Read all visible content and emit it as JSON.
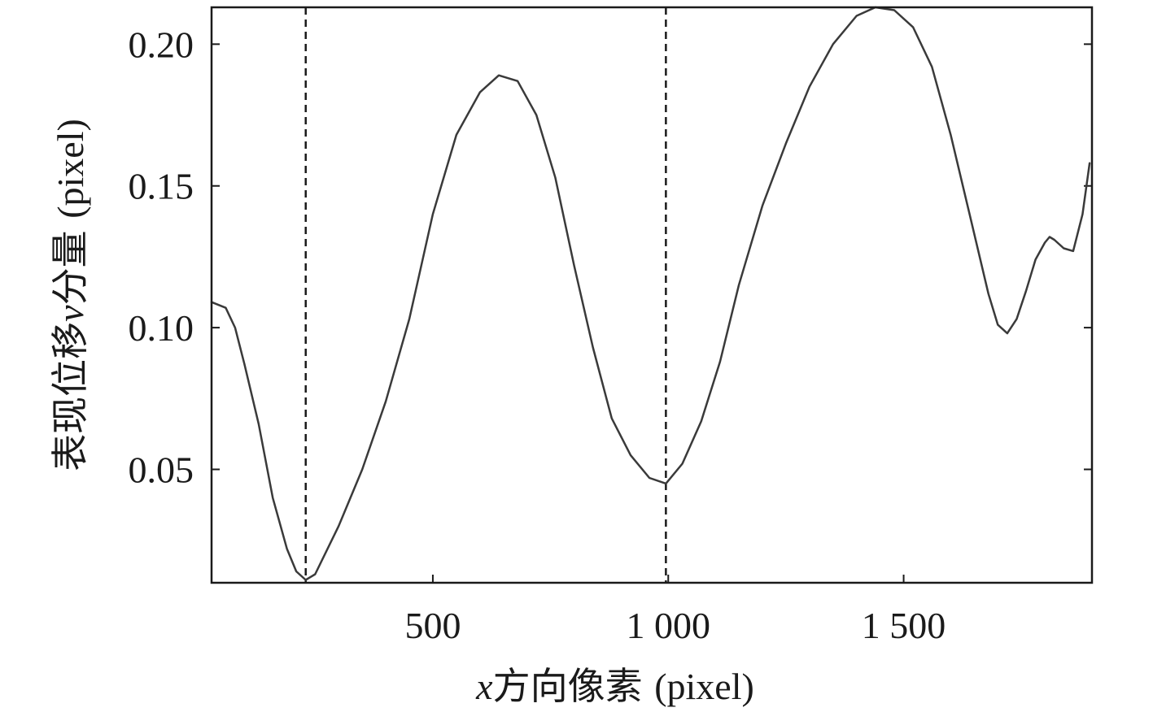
{
  "chart_data": {
    "type": "line",
    "xlabel_var": "x",
    "xlabel_text": "方向像素",
    "xlabel_unit": "(pixel)",
    "ylabel_text": "表现位移",
    "ylabel_var": "v",
    "ylabel_text2": "分量",
    "ylabel_unit": "(pixel)",
    "xlim": [
      30,
      1900
    ],
    "ylim": [
      0.01,
      0.213
    ],
    "xticks": [
      {
        "value": 500,
        "label": "500"
      },
      {
        "value": 1000,
        "label": "1 000"
      },
      {
        "value": 1500,
        "label": "1 500"
      }
    ],
    "yticks": [
      {
        "value": 0.05,
        "label": "0.05"
      },
      {
        "value": 0.1,
        "label": "0.10"
      },
      {
        "value": 0.15,
        "label": "0.15"
      },
      {
        "value": 0.2,
        "label": "0.20"
      }
    ],
    "vlines": [
      230,
      995
    ],
    "grid": false,
    "legend": "none",
    "line_color": "#3a3a3a",
    "series": [
      {
        "x": [
          30,
          60,
          80,
          100,
          130,
          160,
          190,
          210,
          230,
          250,
          300,
          350,
          400,
          450,
          500,
          550,
          600,
          640,
          680,
          720,
          760,
          800,
          840,
          880,
          920,
          960,
          995,
          1030,
          1070,
          1110,
          1150,
          1200,
          1250,
          1300,
          1350,
          1400,
          1440,
          1480,
          1520,
          1560,
          1600,
          1640,
          1680,
          1700,
          1720,
          1740,
          1760,
          1780,
          1800,
          1810,
          1820,
          1840,
          1860,
          1880,
          1895
        ],
        "y": [
          0.109,
          0.107,
          0.1,
          0.087,
          0.066,
          0.04,
          0.022,
          0.014,
          0.011,
          0.013,
          0.03,
          0.05,
          0.074,
          0.103,
          0.14,
          0.168,
          0.183,
          0.189,
          0.187,
          0.175,
          0.153,
          0.122,
          0.093,
          0.068,
          0.055,
          0.047,
          0.045,
          0.052,
          0.067,
          0.088,
          0.115,
          0.143,
          0.165,
          0.185,
          0.2,
          0.21,
          0.213,
          0.212,
          0.206,
          0.192,
          0.168,
          0.14,
          0.112,
          0.101,
          0.098,
          0.103,
          0.113,
          0.124,
          0.13,
          0.132,
          0.131,
          0.128,
          0.127,
          0.14,
          0.158
        ]
      }
    ]
  }
}
